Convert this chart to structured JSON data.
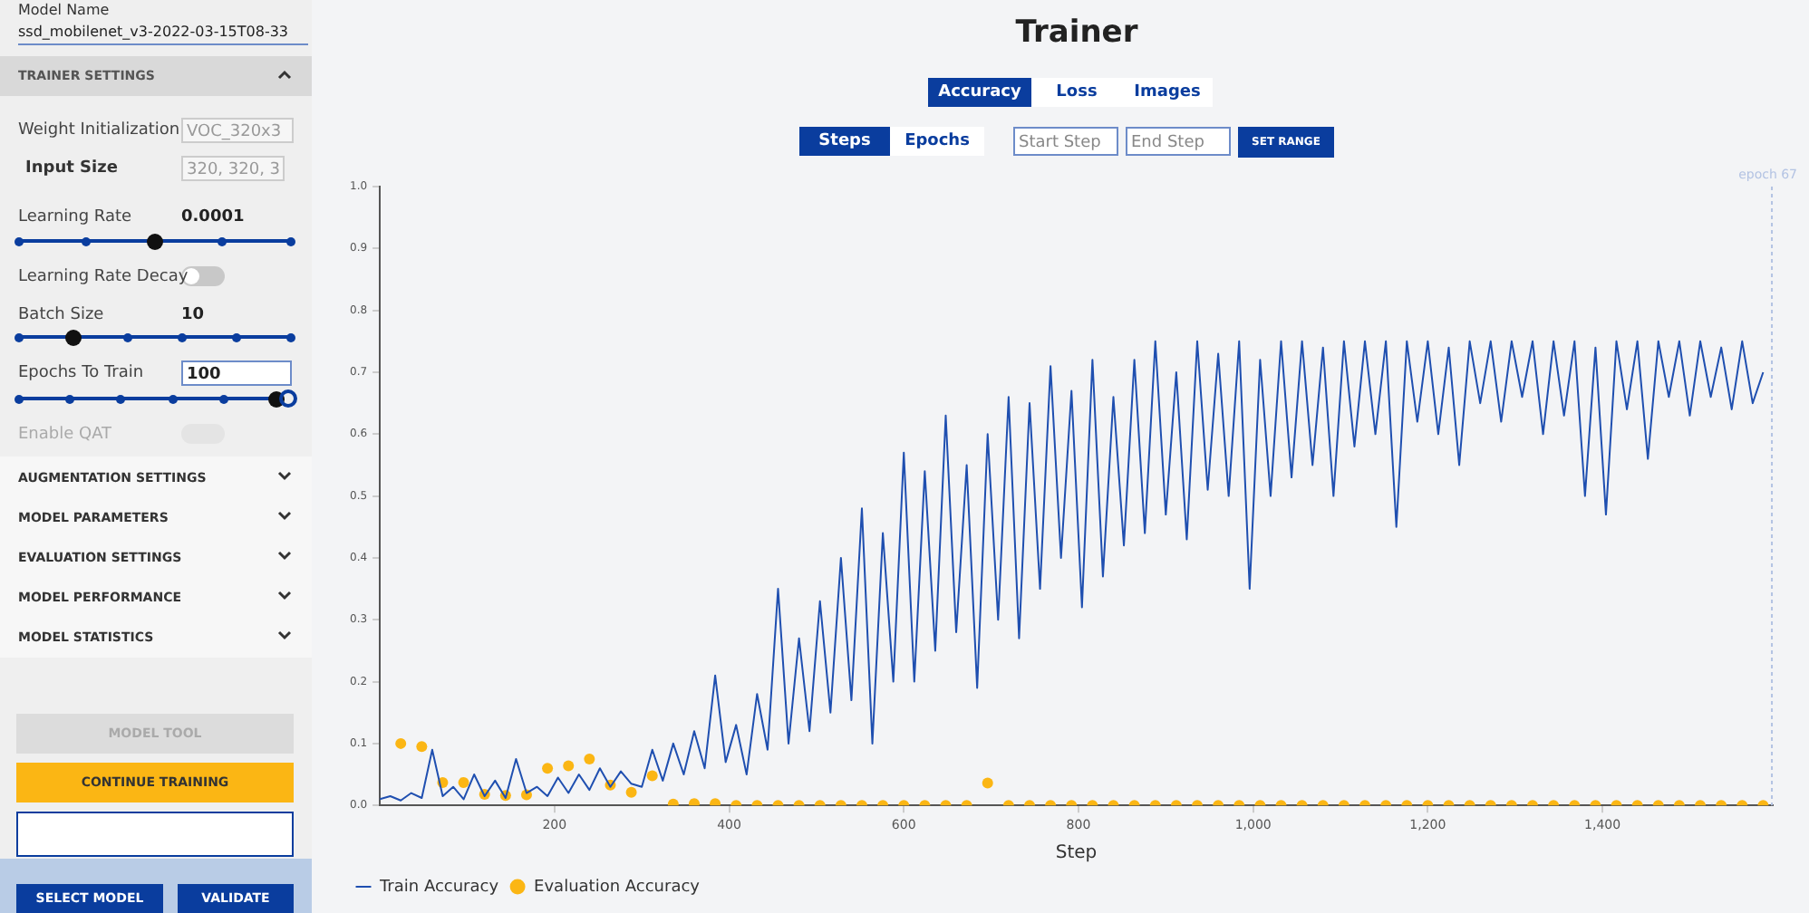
{
  "chart_data": {
    "type": "line",
    "title": "Trainer",
    "xlabel": "Step",
    "legend": "bottom left",
    "grid": false,
    "xlim": [
      0,
      1595
    ],
    "ylim": [
      0,
      1
    ],
    "xticks": [
      200,
      400,
      600,
      800,
      {
        "value": 1000,
        "label": "1,000"
      },
      {
        "value": 1200,
        "label": "1,200"
      },
      {
        "value": 1400,
        "label": "1,400"
      }
    ],
    "yticks": [
      {
        "value": 0,
        "label": "0.0"
      },
      0.1,
      0.2,
      0.3,
      0.4,
      0.5,
      0.6,
      0.7,
      0.8,
      0.9,
      {
        "value": 1,
        "label": "1.0"
      }
    ],
    "ref_lines": [
      {
        "axis": "x",
        "value": 1594,
        "label": "epoch 67",
        "color": "#b3c3e3",
        "line_style": "dotted"
      }
    ],
    "series": [
      {
        "name": "Train Accuracy",
        "color": "#1f4fb0",
        "marker": "none",
        "x": [
          0,
          12,
          24,
          36,
          48,
          60,
          72,
          84,
          96,
          108,
          120,
          132,
          144,
          156,
          168,
          180,
          192,
          204,
          216,
          228,
          240,
          252,
          264,
          276,
          288,
          300,
          312,
          324,
          336,
          348,
          360,
          372,
          384,
          396,
          408,
          420,
          432,
          444,
          456,
          468,
          480,
          492,
          504,
          516,
          528,
          540,
          552,
          564,
          576,
          588,
          600,
          612,
          624,
          636,
          648,
          660,
          672,
          684,
          696,
          708,
          720,
          732,
          744,
          756,
          768,
          780,
          792,
          804,
          816,
          828,
          840,
          852,
          864,
          876,
          888,
          900,
          912,
          924,
          936,
          948,
          960,
          972,
          984,
          996,
          1008,
          1020,
          1032,
          1044,
          1056,
          1068,
          1080,
          1092,
          1104,
          1116,
          1128,
          1140,
          1152,
          1164,
          1176,
          1188,
          1200,
          1212,
          1224,
          1236,
          1248,
          1260,
          1272,
          1284,
          1296,
          1308,
          1320,
          1332,
          1344,
          1356,
          1368,
          1380,
          1392,
          1404,
          1416,
          1428,
          1440,
          1452,
          1464,
          1476,
          1488,
          1500,
          1512,
          1524,
          1536,
          1548,
          1560,
          1572,
          1584
        ],
        "values": [
          0.01,
          0.015,
          0.008,
          0.02,
          0.012,
          0.09,
          0.015,
          0.03,
          0.01,
          0.05,
          0.015,
          0.04,
          0.012,
          0.075,
          0.02,
          0.03,
          0.015,
          0.045,
          0.02,
          0.05,
          0.025,
          0.06,
          0.03,
          0.055,
          0.035,
          0.03,
          0.09,
          0.04,
          0.1,
          0.05,
          0.12,
          0.06,
          0.21,
          0.07,
          0.13,
          0.05,
          0.18,
          0.09,
          0.35,
          0.1,
          0.27,
          0.12,
          0.33,
          0.15,
          0.4,
          0.17,
          0.48,
          0.1,
          0.44,
          0.2,
          0.57,
          0.2,
          0.54,
          0.25,
          0.63,
          0.28,
          0.55,
          0.19,
          0.6,
          0.3,
          0.66,
          0.27,
          0.65,
          0.35,
          0.71,
          0.4,
          0.67,
          0.32,
          0.72,
          0.37,
          0.66,
          0.42,
          0.72,
          0.44,
          0.75,
          0.47,
          0.7,
          0.43,
          0.75,
          0.51,
          0.73,
          0.5,
          0.75,
          0.35,
          0.72,
          0.5,
          0.75,
          0.53,
          0.75,
          0.55,
          0.74,
          0.5,
          0.75,
          0.58,
          0.75,
          0.6,
          0.75,
          0.45,
          0.75,
          0.62,
          0.75,
          0.6,
          0.74,
          0.55,
          0.75,
          0.65,
          0.75,
          0.62,
          0.75,
          0.66,
          0.75,
          0.6,
          0.75,
          0.63,
          0.75,
          0.5,
          0.74,
          0.47,
          0.75,
          0.64,
          0.75,
          0.56,
          0.75,
          0.66,
          0.75,
          0.63,
          0.75,
          0.66,
          0.74,
          0.64,
          0.75,
          0.65,
          0.7
        ]
      },
      {
        "name": "Evaluation Accuracy",
        "type": "scatter",
        "color": "#fbb614",
        "marker": "circle",
        "x": [
          24,
          48,
          72,
          96,
          120,
          144,
          168,
          192,
          216,
          240,
          264,
          288,
          312,
          336,
          360,
          384,
          408,
          432,
          456,
          480,
          504,
          528,
          552,
          576,
          600,
          624,
          648,
          672,
          696,
          720,
          744,
          768,
          792,
          816,
          840,
          864,
          888,
          912,
          936,
          960,
          984,
          1008,
          1032,
          1056,
          1080,
          1104,
          1128,
          1152,
          1176,
          1200,
          1224,
          1248,
          1272,
          1296,
          1320,
          1344,
          1368,
          1392,
          1416,
          1440,
          1464,
          1488,
          1512,
          1536,
          1560,
          1584
        ],
        "values": [
          0.1,
          0.095,
          0.037,
          0.037,
          0.018,
          0.016,
          0.017,
          0.06,
          0.064,
          0.075,
          0.033,
          0.021,
          0.048,
          0.002,
          0.003,
          0.003,
          0,
          0,
          0,
          0,
          0,
          0,
          0,
          0,
          0,
          0,
          0,
          0,
          0.036,
          0,
          0,
          0,
          0,
          0,
          0,
          0,
          0,
          0,
          0,
          0,
          0,
          0,
          0,
          0,
          0,
          0,
          0,
          0,
          0,
          0,
          0,
          0,
          0,
          0,
          0,
          0,
          0,
          0,
          0,
          0,
          0,
          0,
          0,
          0,
          0,
          0
        ]
      }
    ],
    "annotations": [
      "Model Name",
      "ssd_mobilenet_v3-2022-03-15T08-33",
      "TRAINER SETTINGS",
      "Weight Initialization",
      "VOC_320x3",
      "Input Size",
      "320, 320, 3",
      "Learning Rate",
      "0.0001",
      "Learning Rate Decay",
      "Batch Size",
      "10",
      "Epochs To Train",
      "100",
      "Enable QAT",
      "AUGMENTATION SETTINGS",
      "MODEL PARAMETERS",
      "EVALUATION SETTINGS",
      "MODEL PERFORMANCE",
      "MODEL STATISTICS",
      "MODEL TOOL",
      "CONTINUE TRAINING",
      "SELECT MODEL",
      "VALIDATE",
      "Accuracy",
      "Loss",
      "Images",
      "Steps",
      "Epochs",
      "Start Step",
      "End Step",
      "SET RANGE"
    ]
  }
}
